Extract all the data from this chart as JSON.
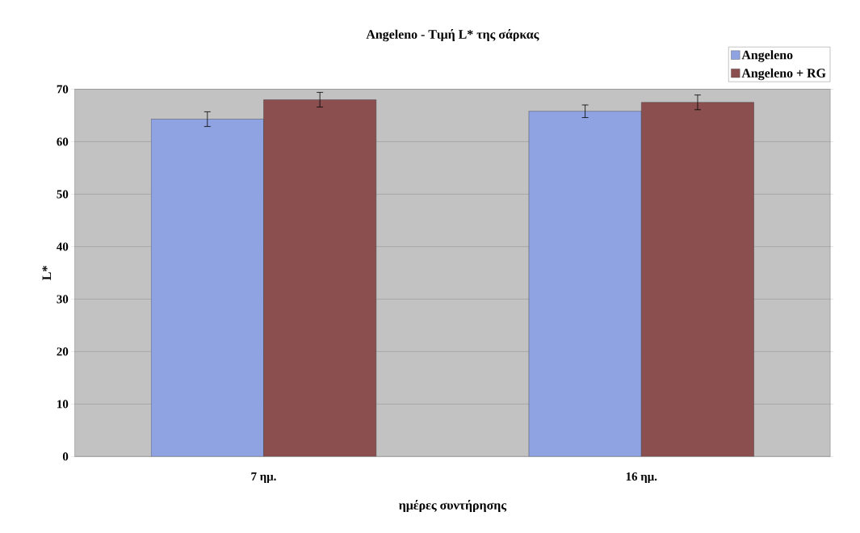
{
  "chart_data": {
    "type": "bar",
    "title": "Angeleno - Τιμή L* της σάρκας",
    "xlabel": "ημέρες συντήρησης",
    "ylabel": "L*",
    "categories": [
      "7 ημ.",
      "16 ημ."
    ],
    "series": [
      {
        "name": "Angeleno",
        "color": "#8fa3e3",
        "values": [
          64.3,
          65.8
        ],
        "errors": [
          1.4,
          1.2
        ]
      },
      {
        "name": "Angeleno + RG",
        "color": "#8b4f4f",
        "values": [
          68.0,
          67.5
        ],
        "errors": [
          1.4,
          1.4
        ]
      }
    ],
    "ylim": [
      0,
      70
    ],
    "yticks": [
      0,
      10,
      20,
      30,
      40,
      50,
      60,
      70
    ],
    "grid": "y",
    "legend": "top right"
  }
}
